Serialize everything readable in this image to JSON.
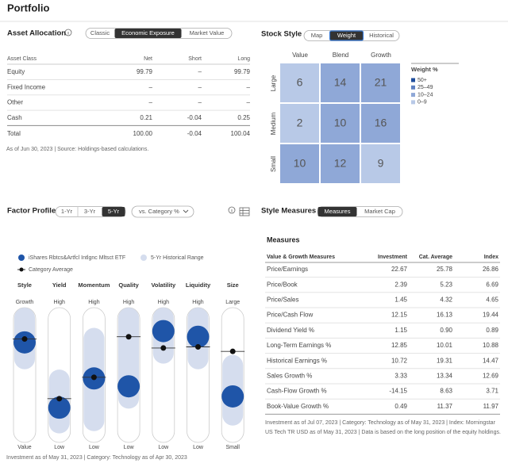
{
  "title": "Portfolio",
  "asset_allocation": {
    "title": "Asset Allocation",
    "tabs": [
      "Classic",
      "Economic Exposure",
      "Market Value"
    ],
    "active_tab": 1,
    "columns": [
      "Asset Class",
      "Net",
      "Short",
      "Long"
    ],
    "rows": [
      [
        "Equity",
        "99.79",
        "–",
        "99.79"
      ],
      [
        "Fixed Income",
        "–",
        "–",
        "–"
      ],
      [
        "Other",
        "–",
        "–",
        "–"
      ],
      [
        "Cash",
        "0.21",
        "-0.04",
        "0.25"
      ]
    ],
    "total": [
      "Total",
      "100.00",
      "-0.04",
      "100.04"
    ],
    "note": "As of Jun 30, 2023 | Source: Holdings-based calculations."
  },
  "stock_style": {
    "title": "Stock Style",
    "tabs": [
      "Map",
      "Weight",
      "Historical"
    ],
    "active_tab": 1,
    "columns": [
      "Value",
      "Blend",
      "Growth"
    ],
    "rows": [
      "Large",
      "Medium",
      "Small"
    ],
    "weights": [
      [
        6,
        14,
        21
      ],
      [
        2,
        10,
        16
      ],
      [
        10,
        12,
        9
      ]
    ],
    "legend_title": "Weight %",
    "legend": [
      {
        "label": "50+",
        "min": 50,
        "color": "#1f4e9c"
      },
      {
        "label": "25–49",
        "min": 25,
        "color": "#5f82c2"
      },
      {
        "label": "10–24",
        "min": 10,
        "color": "#8fa8d7"
      },
      {
        "label": "0–9",
        "min": 0,
        "color": "#b8c9e7"
      }
    ]
  },
  "factor_profile": {
    "title": "Factor Profile",
    "tabs": [
      "1-Yr",
      "3-Yr",
      "5-Yr"
    ],
    "active_tab": 2,
    "dropdown": "vs. Category %",
    "legend": {
      "fund": "iShares Rbtcs&Artfcl Intlgnc Mltsct ETF",
      "range": "5-Yr Historical Range",
      "category": "Category Average"
    },
    "fund_color": "#1f55a8",
    "range_color": "#d5ddee",
    "ylim": [
      0,
      100
    ],
    "factors": [
      {
        "name": "Style",
        "top": "Growth",
        "bottom": "Value",
        "fund": 79,
        "category": 82,
        "range": [
          65,
          100
        ]
      },
      {
        "name": "Yield",
        "top": "High",
        "bottom": "Low",
        "fund": 21,
        "category": 29,
        "range": [
          8,
          45
        ]
      },
      {
        "name": "Momentum",
        "top": "High",
        "bottom": "Low",
        "fund": 47,
        "category": 48,
        "range": [
          10,
          82
        ]
      },
      {
        "name": "Quality",
        "top": "High",
        "bottom": "Low",
        "fund": 40,
        "category": 84,
        "range": [
          30,
          100
        ]
      },
      {
        "name": "Volatility",
        "top": "High",
        "bottom": "Low",
        "fund": 89,
        "category": 74,
        "range": [
          70,
          100
        ]
      },
      {
        "name": "Liquidity",
        "top": "High",
        "bottom": "Low",
        "fund": 84,
        "category": 75,
        "range": [
          65,
          100
        ]
      },
      {
        "name": "Size",
        "top": "Large",
        "bottom": "Small",
        "fund": 31,
        "category": 71,
        "range": [
          15,
          58
        ]
      }
    ],
    "note": "Investment as of May 31, 2023 | Category: Technology as of Apr 30, 2023"
  },
  "style_measures": {
    "title": "Style Measures",
    "tabs": [
      "Measures",
      "Market Cap"
    ],
    "active_tab": 0,
    "subtitle": "Measures",
    "columns": [
      "Value & Growth Measures",
      "Investment",
      "Cat. Average",
      "Index"
    ],
    "rows": [
      [
        "Price/Earnings",
        "22.67",
        "25.78",
        "26.86"
      ],
      [
        "Price/Book",
        "2.39",
        "5.23",
        "6.69"
      ],
      [
        "Price/Sales",
        "1.45",
        "4.32",
        "4.65"
      ],
      [
        "Price/Cash Flow",
        "12.15",
        "16.13",
        "19.44"
      ],
      [
        "Dividend Yield %",
        "1.15",
        "0.90",
        "0.89"
      ],
      [
        "Long-Term Earnings %",
        "12.85",
        "10.01",
        "10.88"
      ],
      [
        "Historical Earnings %",
        "10.72",
        "19.31",
        "14.47"
      ],
      [
        "Sales Growth %",
        "3.33",
        "13.34",
        "12.69"
      ],
      [
        "Cash-Flow Growth %",
        "-14.15",
        "8.63",
        "3.71"
      ],
      [
        "Book-Value Growth %",
        "0.49",
        "11.37",
        "11.97"
      ]
    ],
    "note": "Investment as of Jul 07, 2023 | Category: Technology as of May 31, 2023 | Index: Morningstar US Tech TR USD as of May 31, 2023 | Data is based on the long position of the equity holdings."
  }
}
